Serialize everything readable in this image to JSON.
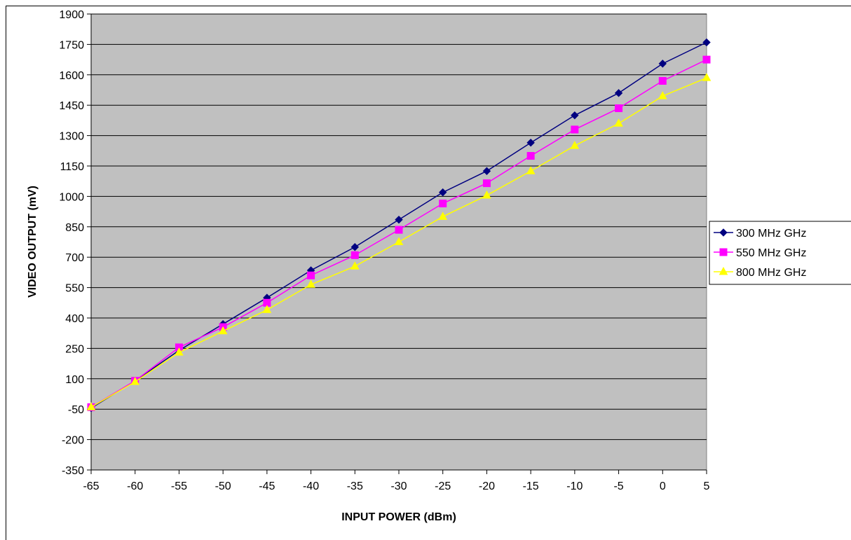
{
  "chart_data": {
    "type": "line",
    "xlabel": "INPUT POWER (dBm)",
    "ylabel": "VIDEO OUTPUT (mV)",
    "x": [
      -65,
      -60,
      -55,
      -50,
      -45,
      -40,
      -35,
      -30,
      -25,
      -20,
      -15,
      -10,
      -5,
      0,
      5
    ],
    "xlim": [
      -65,
      5
    ],
    "ylim": [
      -350,
      1900
    ],
    "yticks": [
      -350,
      -200,
      -50,
      100,
      250,
      400,
      550,
      700,
      850,
      1000,
      1150,
      1300,
      1450,
      1600,
      1750,
      1900
    ],
    "grid": "horizontal",
    "plot_background": "#c0c0c0",
    "legend": "right",
    "series": [
      {
        "name": "300 MHz GHz",
        "color": "#000080",
        "marker": "diamond",
        "values": [
          -45,
          90,
          240,
          370,
          500,
          635,
          750,
          885,
          1020,
          1125,
          1265,
          1400,
          1510,
          1655,
          1760
        ]
      },
      {
        "name": "550 MHz GHz",
        "color": "#ff00ff",
        "marker": "square",
        "values": [
          -40,
          90,
          255,
          355,
          475,
          610,
          710,
          835,
          965,
          1065,
          1200,
          1330,
          1435,
          1570,
          1675
        ]
      },
      {
        "name": "800 MHz GHz",
        "color": "#ffff00",
        "marker": "triangle",
        "values": [
          -40,
          85,
          230,
          335,
          440,
          565,
          655,
          775,
          900,
          1005,
          1125,
          1250,
          1360,
          1495,
          1585
        ]
      }
    ]
  }
}
